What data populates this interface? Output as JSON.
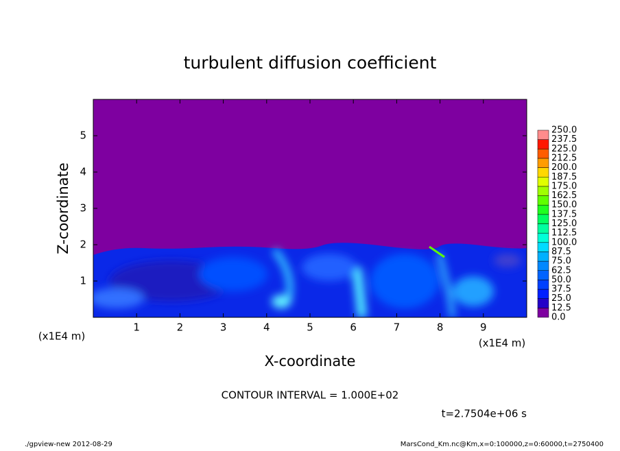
{
  "chart_data": {
    "type": "contour",
    "title": "turbulent diffusion coefficient",
    "x_label": "X-coordinate",
    "y_label": "Z-coordinate",
    "x_unit": "(x1E4 m)",
    "y_unit": "(x1E4 m)",
    "xlim": [
      0,
      10
    ],
    "ylim": [
      0,
      6
    ],
    "xticks": [
      1,
      2,
      3,
      4,
      5,
      6,
      7,
      8,
      9
    ],
    "yticks": [
      1,
      2,
      3,
      4,
      5
    ],
    "levels": [
      {
        "value": 0,
        "label": "0.0"
      },
      12.5,
      {
        "value": 25,
        "label": "25.0"
      },
      37.5,
      {
        "value": 50,
        "label": "50.0"
      },
      62.5,
      {
        "value": 75,
        "label": "75.0"
      },
      87.5,
      {
        "value": 100,
        "label": "100.0"
      },
      112.5,
      {
        "value": 125,
        "label": "125.0"
      },
      137.5,
      {
        "value": 150,
        "label": "150.0"
      },
      162.5,
      {
        "value": 175,
        "label": "175.0"
      },
      187.5,
      {
        "value": 200,
        "label": "200.0"
      },
      212.5,
      {
        "value": 225,
        "label": "225.0"
      },
      237.5,
      {
        "value": 250,
        "label": "250.0"
      }
    ],
    "level_colors": [
      "#7e00a0",
      "#2400c8",
      "#0020ff",
      "#0040ff",
      "#0064ff",
      "#0088ff",
      "#00b0ff",
      "#00dcff",
      "#00ffd8",
      "#00ffa0",
      "#00ff60",
      "#20ff20",
      "#60ff00",
      "#a0ff00",
      "#e0ff00",
      "#ffd800",
      "#ff9c00",
      "#ff5c00",
      "#ff1800",
      "#ff8c8c"
    ],
    "contour_interval": "CONTOUR INTERVAL = 1.000E+02",
    "time": "t=2.7504e+06 s",
    "footer_left": "./gpview-new  2012-08-29",
    "footer_right": "MarsCond_Km.nc@Km,x=0:100000,z=0:60000,t=2750400"
  }
}
